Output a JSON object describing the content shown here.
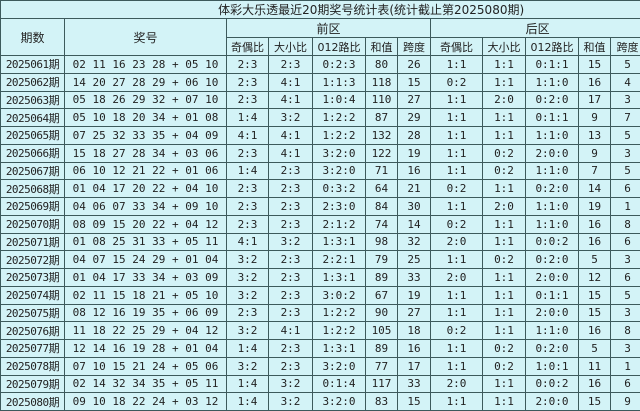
{
  "title": "体彩大乐透最近20期奖号统计表(统计截止第2025080期)",
  "headers": {
    "period": "期数",
    "numbers": "奖号",
    "front": "前区",
    "back": "后区",
    "front_cols": [
      "奇偶比",
      "大小比",
      "012路比",
      "和值",
      "跨度"
    ],
    "back_cols": [
      "奇偶比",
      "大小比",
      "012路比",
      "和值",
      "跨度"
    ]
  },
  "rows": [
    {
      "period": "2025061期",
      "numbers": "02 11 16 23 28 + 05 10",
      "front": [
        "2:3",
        "2:3",
        "0:2:3",
        "80",
        "26"
      ],
      "back": [
        "1:1",
        "1:1",
        "0:1:1",
        "15",
        "5"
      ]
    },
    {
      "period": "2025062期",
      "numbers": "14 20 27 28 29 + 06 10",
      "front": [
        "2:3",
        "4:1",
        "1:1:3",
        "118",
        "15"
      ],
      "back": [
        "0:2",
        "1:1",
        "1:1:0",
        "16",
        "4"
      ]
    },
    {
      "period": "2025063期",
      "numbers": "05 18 26 29 32 + 07 10",
      "front": [
        "2:3",
        "4:1",
        "1:0:4",
        "110",
        "27"
      ],
      "back": [
        "1:1",
        "2:0",
        "0:2:0",
        "17",
        "3"
      ]
    },
    {
      "period": "2025064期",
      "numbers": "05 10 18 20 34 + 01 08",
      "front": [
        "1:4",
        "3:2",
        "1:2:2",
        "87",
        "29"
      ],
      "back": [
        "1:1",
        "1:1",
        "0:1:1",
        "9",
        "7"
      ]
    },
    {
      "period": "2025065期",
      "numbers": "07 25 32 33 35 + 04 09",
      "front": [
        "4:1",
        "4:1",
        "1:2:2",
        "132",
        "28"
      ],
      "back": [
        "1:1",
        "1:1",
        "1:1:0",
        "13",
        "5"
      ]
    },
    {
      "period": "2025066期",
      "numbers": "15 18 27 28 34 + 03 06",
      "front": [
        "2:3",
        "4:1",
        "3:2:0",
        "122",
        "19"
      ],
      "back": [
        "1:1",
        "0:2",
        "2:0:0",
        "9",
        "3"
      ]
    },
    {
      "period": "2025067期",
      "numbers": "06 10 12 21 22 + 01 06",
      "front": [
        "1:4",
        "2:3",
        "3:2:0",
        "71",
        "16"
      ],
      "back": [
        "1:1",
        "0:2",
        "1:1:0",
        "7",
        "5"
      ]
    },
    {
      "period": "2025068期",
      "numbers": "01 04 17 20 22 + 04 10",
      "front": [
        "2:3",
        "2:3",
        "0:3:2",
        "64",
        "21"
      ],
      "back": [
        "0:2",
        "1:1",
        "0:2:0",
        "14",
        "6"
      ]
    },
    {
      "period": "2025069期",
      "numbers": "04 06 07 33 34 + 09 10",
      "front": [
        "2:3",
        "2:3",
        "2:3:0",
        "84",
        "30"
      ],
      "back": [
        "1:1",
        "2:0",
        "1:1:0",
        "19",
        "1"
      ]
    },
    {
      "period": "2025070期",
      "numbers": "08 09 15 20 22 + 04 12",
      "front": [
        "2:3",
        "2:3",
        "2:1:2",
        "74",
        "14"
      ],
      "back": [
        "0:2",
        "1:1",
        "1:1:0",
        "16",
        "8"
      ]
    },
    {
      "period": "2025071期",
      "numbers": "01 08 25 31 33 + 05 11",
      "front": [
        "4:1",
        "3:2",
        "1:3:1",
        "98",
        "32"
      ],
      "back": [
        "2:0",
        "1:1",
        "0:0:2",
        "16",
        "6"
      ]
    },
    {
      "period": "2025072期",
      "numbers": "04 07 15 24 29 + 01 04",
      "front": [
        "3:2",
        "2:3",
        "2:2:1",
        "79",
        "25"
      ],
      "back": [
        "1:1",
        "0:2",
        "0:2:0",
        "5",
        "3"
      ]
    },
    {
      "period": "2025073期",
      "numbers": "01 04 17 33 34 + 03 09",
      "front": [
        "3:2",
        "2:3",
        "1:3:1",
        "89",
        "33"
      ],
      "back": [
        "2:0",
        "1:1",
        "2:0:0",
        "12",
        "6"
      ]
    },
    {
      "period": "2025074期",
      "numbers": "02 11 15 18 21 + 05 10",
      "front": [
        "3:2",
        "2:3",
        "3:0:2",
        "67",
        "19"
      ],
      "back": [
        "1:1",
        "1:1",
        "0:1:1",
        "15",
        "5"
      ]
    },
    {
      "period": "2025075期",
      "numbers": "08 12 16 19 35 + 06 09",
      "front": [
        "2:3",
        "2:3",
        "1:2:2",
        "90",
        "27"
      ],
      "back": [
        "1:1",
        "1:1",
        "2:0:0",
        "15",
        "3"
      ]
    },
    {
      "period": "2025076期",
      "numbers": "11 18 22 25 29 + 04 12",
      "front": [
        "3:2",
        "4:1",
        "1:2:2",
        "105",
        "18"
      ],
      "back": [
        "0:2",
        "1:1",
        "1:1:0",
        "16",
        "8"
      ]
    },
    {
      "period": "2025077期",
      "numbers": "12 14 16 19 28 + 01 04",
      "front": [
        "1:4",
        "2:3",
        "1:3:1",
        "89",
        "16"
      ],
      "back": [
        "1:1",
        "0:2",
        "0:2:0",
        "5",
        "3"
      ]
    },
    {
      "period": "2025078期",
      "numbers": "07 10 15 21 24 + 05 06",
      "front": [
        "3:2",
        "2:3",
        "3:2:0",
        "77",
        "17"
      ],
      "back": [
        "1:1",
        "0:2",
        "1:0:1",
        "11",
        "1"
      ]
    },
    {
      "period": "2025079期",
      "numbers": "02 14 32 34 35 + 05 11",
      "front": [
        "1:4",
        "3:2",
        "0:1:4",
        "117",
        "33"
      ],
      "back": [
        "2:0",
        "1:1",
        "0:0:2",
        "16",
        "6"
      ]
    },
    {
      "period": "2025080期",
      "numbers": "09 10 18 22 24 + 03 12",
      "front": [
        "1:4",
        "3:2",
        "3:2:0",
        "83",
        "15"
      ],
      "back": [
        "1:1",
        "1:1",
        "2:0:0",
        "15",
        "9"
      ]
    }
  ]
}
